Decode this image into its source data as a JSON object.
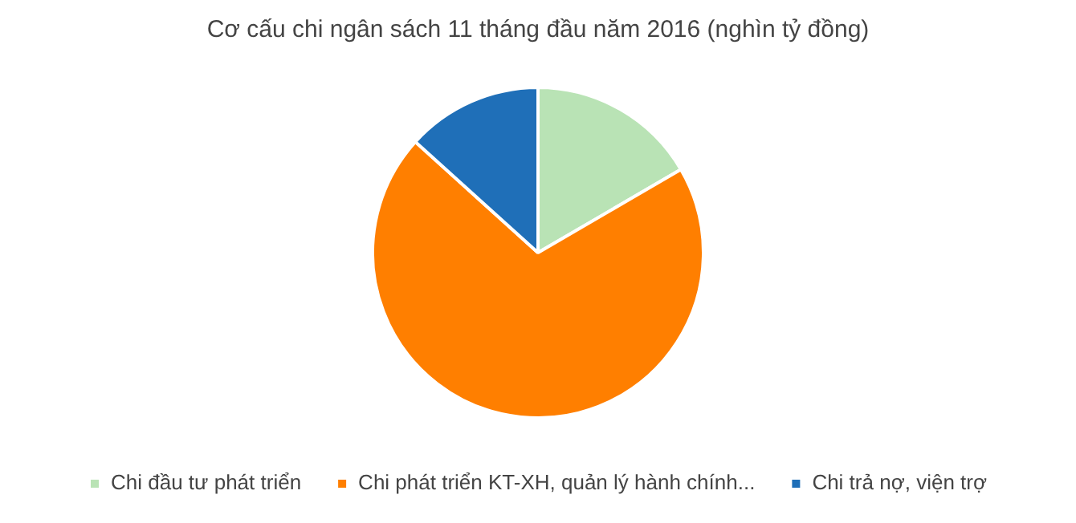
{
  "chart_data": {
    "type": "pie",
    "title": "Cơ cấu chi ngân sách 11 tháng đầu năm 2016 (nghìn tỷ đồng)",
    "categories": [
      "Chi đầu tư phát triển",
      "Chi phát triển KT-XH, quản lý hành chính...",
      "Chi trả nợ, viện trợ"
    ],
    "values": [
      16.6,
      70.1,
      13.3
    ],
    "colors": [
      "#b9e3b5",
      "#ff7f00",
      "#1f6fb8"
    ],
    "legend": "bottom"
  }
}
